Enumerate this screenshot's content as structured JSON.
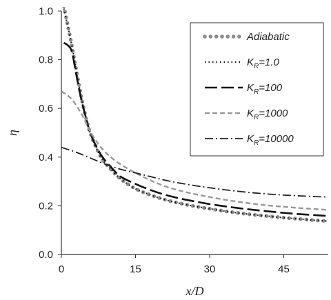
{
  "chart_data": {
    "type": "line",
    "title": "",
    "xlabel": "x/D",
    "ylabel": "η",
    "xlim": [
      0,
      54
    ],
    "ylim": [
      0,
      1.0
    ],
    "xticks": [
      0,
      15,
      30,
      45
    ],
    "yticks": [
      0.0,
      0.2,
      0.4,
      0.6,
      0.8,
      1.0
    ],
    "xtick_labels": [
      "0",
      "15",
      "30",
      "45"
    ],
    "ytick_labels": [
      "0.0",
      "0.2",
      "0.4",
      "0.6",
      "0.8",
      "1.0"
    ],
    "grid": false,
    "legend_position": "top-right",
    "series": [
      {
        "name": "Adiabatic",
        "legend_label": {
          "main": "Adiabatic",
          "sub": "",
          "tail": ""
        },
        "style": "dots",
        "color": "#8c8c8c",
        "x": [
          0.5,
          2,
          3,
          4,
          5,
          6,
          8,
          10,
          12,
          15,
          18,
          21,
          24,
          27,
          30,
          33,
          36,
          39,
          42,
          45,
          48,
          51,
          54
        ],
        "y": [
          1.02,
          0.87,
          0.76,
          0.65,
          0.56,
          0.49,
          0.4,
          0.35,
          0.31,
          0.27,
          0.245,
          0.225,
          0.21,
          0.198,
          0.188,
          0.178,
          0.17,
          0.163,
          0.157,
          0.151,
          0.146,
          0.141,
          0.137
        ]
      },
      {
        "name": "K_R=1.0",
        "legend_label": {
          "main": "K",
          "sub": "R",
          "tail": "=1.0"
        },
        "style": "dotted",
        "color": "#111111",
        "x": [
          0.5,
          2,
          3,
          4,
          5,
          6,
          8,
          10,
          12,
          15,
          18,
          21,
          24,
          27,
          30,
          33,
          36,
          39,
          42,
          45,
          48,
          51,
          54
        ],
        "y": [
          1.01,
          0.87,
          0.76,
          0.65,
          0.56,
          0.49,
          0.4,
          0.35,
          0.31,
          0.27,
          0.245,
          0.225,
          0.21,
          0.198,
          0.188,
          0.178,
          0.17,
          0.163,
          0.157,
          0.151,
          0.146,
          0.141,
          0.137
        ]
      },
      {
        "name": "K_R=100",
        "legend_label": {
          "main": "K",
          "sub": "R",
          "tail": "=100"
        },
        "style": "longdash",
        "color": "#111111",
        "x": [
          0.5,
          2,
          3,
          4,
          5,
          6,
          8,
          10,
          12,
          15,
          18,
          21,
          24,
          27,
          30,
          33,
          36,
          39,
          42,
          45,
          48,
          51,
          54
        ],
        "y": [
          0.87,
          0.84,
          0.74,
          0.64,
          0.56,
          0.49,
          0.41,
          0.36,
          0.32,
          0.29,
          0.265,
          0.245,
          0.23,
          0.218,
          0.207,
          0.198,
          0.19,
          0.183,
          0.177,
          0.171,
          0.166,
          0.162,
          0.158
        ]
      },
      {
        "name": "K_R=1000",
        "legend_label": {
          "main": "K",
          "sub": "R",
          "tail": "=1000"
        },
        "style": "dashed",
        "color": "#999999",
        "x": [
          0,
          2,
          4,
          6,
          8,
          10,
          12,
          15,
          18,
          21,
          24,
          27,
          30,
          33,
          36,
          39,
          42,
          45,
          48,
          51,
          54
        ],
        "y": [
          0.67,
          0.64,
          0.58,
          0.5,
          0.44,
          0.4,
          0.37,
          0.335,
          0.305,
          0.28,
          0.262,
          0.248,
          0.236,
          0.225,
          0.216,
          0.208,
          0.201,
          0.196,
          0.191,
          0.187,
          0.183
        ]
      },
      {
        "name": "K_R=10000",
        "legend_label": {
          "main": "K",
          "sub": "R",
          "tail": "=10000"
        },
        "style": "dashdot",
        "color": "#222222",
        "x": [
          0,
          3,
          6,
          9,
          12,
          15,
          18,
          21,
          24,
          27,
          30,
          33,
          36,
          39,
          42,
          45,
          48,
          51,
          54
        ],
        "y": [
          0.44,
          0.42,
          0.395,
          0.37,
          0.35,
          0.335,
          0.32,
          0.305,
          0.293,
          0.283,
          0.274,
          0.266,
          0.259,
          0.253,
          0.248,
          0.244,
          0.241,
          0.238,
          0.236
        ]
      }
    ]
  }
}
